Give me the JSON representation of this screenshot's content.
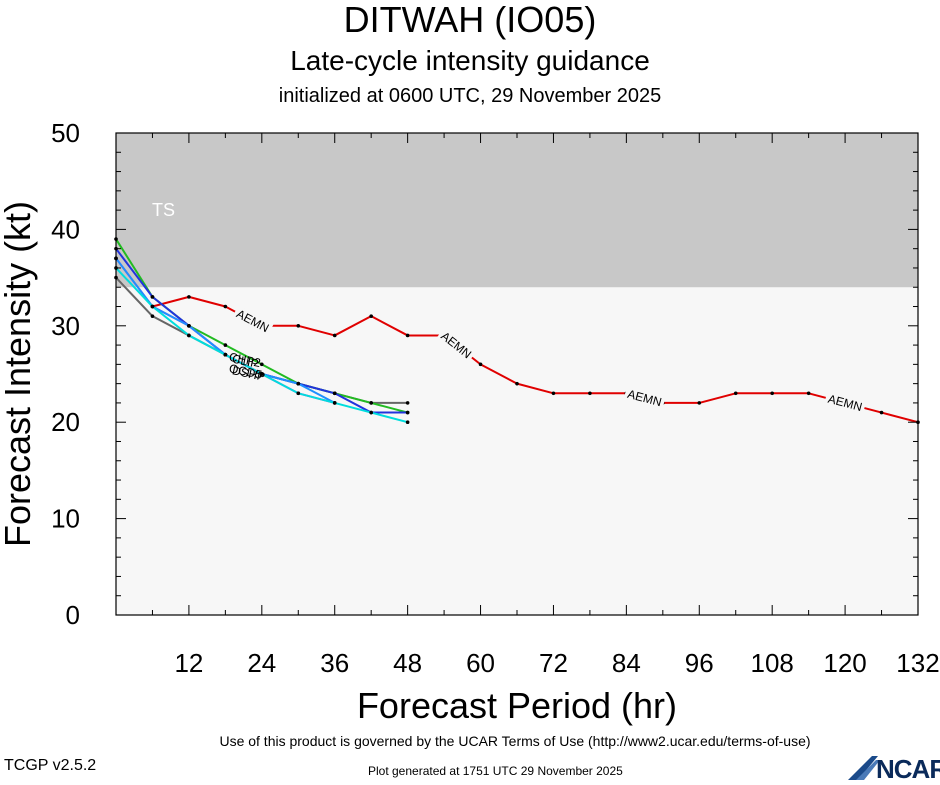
{
  "header": {
    "title": "DITWAH (IO05)",
    "subtitle": "Late-cycle intensity guidance",
    "initialized": "initialized at 0600 UTC, 29 November 2025"
  },
  "footer": {
    "terms": "Use of this product is governed by the UCAR Terms of Use (http://www2.ucar.edu/terms-of-use)",
    "version": "TCGP v2.5.2",
    "generated": "Plot generated at 1751 UTC   29 November 2025",
    "logo_text": "NCAR"
  },
  "chart_data": {
    "type": "line",
    "xlabel": "Forecast Period (hr)",
    "ylabel": "Forecast Intensity (kt)",
    "xlim": [
      0,
      132
    ],
    "ylim": [
      0,
      50
    ],
    "xticks": [
      12,
      24,
      36,
      48,
      60,
      72,
      84,
      96,
      108,
      120,
      132
    ],
    "yticks": [
      0,
      10,
      20,
      30,
      40,
      50
    ],
    "bands": [
      {
        "label": "TS",
        "from": 34,
        "to": 50,
        "color": "#c8c8c8"
      }
    ],
    "plot_background": "#f7f7f7",
    "series": [
      {
        "name": "AEMN",
        "color": "#e00000",
        "x": [
          6,
          12,
          18,
          24,
          30,
          36,
          42,
          48,
          54,
          60,
          66,
          72,
          78,
          84,
          90,
          96,
          102,
          108,
          114,
          120,
          126,
          132
        ],
        "y": [
          32,
          33,
          32,
          30,
          30,
          29,
          31,
          29,
          29,
          26,
          24,
          23,
          23,
          23,
          22,
          22,
          23,
          23,
          23,
          22,
          21,
          20
        ],
        "labels_at": [
          22.5,
          56,
          87,
          120
        ]
      },
      {
        "name": "",
        "color": "#666666",
        "x": [
          0,
          6,
          12,
          18,
          24,
          30,
          36,
          42,
          48
        ],
        "y": [
          35,
          31,
          29,
          27,
          25,
          24,
          23,
          22,
          22
        ]
      },
      {
        "name": "CHP2",
        "color": "#22bb22",
        "x": [
          0,
          6,
          12,
          18,
          24,
          30,
          36,
          42,
          48
        ],
        "y": [
          39,
          33,
          30,
          28,
          26,
          24,
          23,
          22,
          21
        ]
      },
      {
        "name": "",
        "color": "#2233dd",
        "x": [
          0,
          6,
          12,
          18,
          24,
          30,
          36,
          42,
          48
        ],
        "y": [
          38,
          33,
          30,
          27,
          25,
          24,
          23,
          21,
          21
        ]
      },
      {
        "name": "",
        "color": "#dd22dd",
        "x": [
          0,
          6,
          12,
          18,
          24,
          30,
          36
        ],
        "y": [
          37,
          32,
          30,
          27,
          25,
          23,
          22
        ]
      },
      {
        "name": "",
        "color": "#1e90ff",
        "x": [
          0,
          6,
          12,
          18,
          24,
          30,
          36
        ],
        "y": [
          37,
          32,
          30,
          27,
          25,
          24,
          22
        ]
      },
      {
        "name": "",
        "color": "#00dddd",
        "x": [
          0,
          6,
          12,
          18,
          24,
          30,
          36,
          42,
          48
        ],
        "y": [
          36,
          32,
          29,
          27,
          25,
          23,
          22,
          21,
          20
        ]
      }
    ],
    "cluster_labels": [
      {
        "text": "CHP2",
        "x": 18.5,
        "y": 26.4
      },
      {
        "text": "CLIP",
        "x": 19.0,
        "y": 26.2
      },
      {
        "text": "OCD5",
        "x": 18.5,
        "y": 25.2
      },
      {
        "text": "DSHP",
        "x": 19.0,
        "y": 25.0
      }
    ]
  }
}
